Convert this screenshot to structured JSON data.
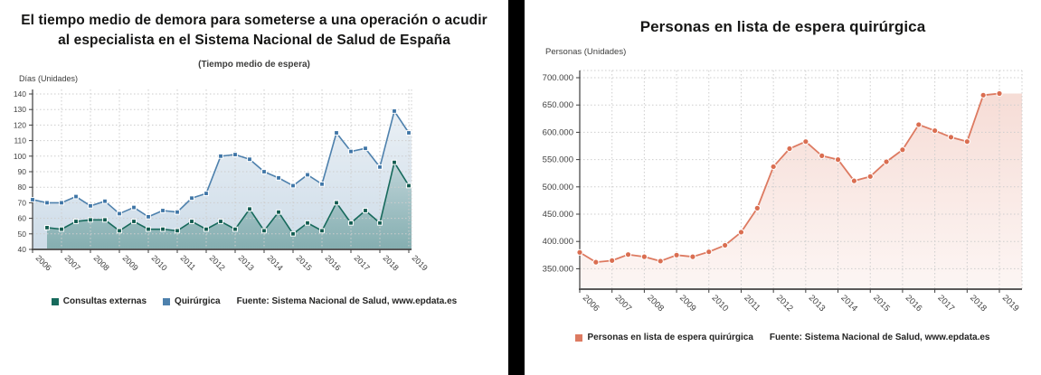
{
  "page": {
    "background": "#ffffff",
    "divider_color": "#000000"
  },
  "chart_data": [
    {
      "type": "line",
      "title": "El tiempo medio de demora para someterse a una operación o acudir al especialista en el Sistema Nacional de Salud de España",
      "subtitle": "(Tiempo medio de espera)",
      "ylabel": "Días (Unidades)",
      "xlabel": "",
      "x_years": [
        "2006",
        "2007",
        "2008",
        "2009",
        "2010",
        "2011",
        "2012",
        "2013",
        "2014",
        "2015",
        "2016",
        "2017",
        "2018",
        "2019"
      ],
      "points_per_year": 2,
      "ylim": [
        40,
        140
      ],
      "yticks": [
        40,
        50,
        60,
        70,
        80,
        90,
        100,
        110,
        120,
        130,
        140
      ],
      "ytick_dots": false,
      "grid": true,
      "legend_position": "bottom",
      "source": "Fuente: Sistema Nacional de Salud, www.epdata.es",
      "series": [
        {
          "name": "Consultas externas",
          "color": "#176a5c",
          "marker_color": "#0f5a4e",
          "marker": "square",
          "start_index": 1,
          "area_opacity": [
            0.16,
            0.4
          ],
          "values": [
            54,
            53,
            58,
            59,
            59,
            52,
            58,
            53,
            53,
            52,
            58,
            53,
            58,
            53,
            66,
            52,
            64,
            50,
            57,
            52,
            70,
            57,
            65,
            57,
            96,
            81
          ]
        },
        {
          "name": "Quirúrgica",
          "color": "#4e81ad",
          "marker_color": "#3d74a6",
          "marker": "square",
          "start_index": 0,
          "area_opacity": [
            0.12,
            0.28
          ],
          "values": [
            72,
            70,
            70,
            74,
            68,
            71,
            63,
            67,
            61,
            65,
            64,
            73,
            76,
            100,
            101,
            98,
            90,
            86,
            81,
            88,
            82,
            115,
            103,
            105,
            93,
            129,
            115
          ]
        }
      ]
    },
    {
      "type": "line",
      "title": "Personas en lista de espera quirúrgica",
      "subtitle": "",
      "ylabel": "Personas (Unidades)",
      "xlabel": "",
      "x_years": [
        "2006",
        "2007",
        "2008",
        "2009",
        "2010",
        "2011",
        "2012",
        "2013",
        "2014",
        "2015",
        "2016",
        "2017",
        "2018",
        "2019"
      ],
      "points_per_year": 2,
      "ylim": [
        312600,
        700000
      ],
      "yticks": [
        350000,
        400000,
        450000,
        500000,
        550000,
        600000,
        650000,
        700000
      ],
      "ytick_dots": true,
      "grid": true,
      "top_border": true,
      "legend_position": "bottom",
      "source": "Fuente: Sistema Nacional de Salud, www.epdata.es",
      "series": [
        {
          "name": "Personas en lista de espera quirúrgica",
          "color": "#dd7a61",
          "marker_color": "#da6e51",
          "marker": "circle",
          "start_index": 0,
          "area_opacity": [
            0.26,
            0.07
          ],
          "values": [
            380000,
            362000,
            365000,
            376000,
            372000,
            364000,
            375000,
            372000,
            381000,
            393000,
            417000,
            461000,
            537000,
            570000,
            583000,
            557000,
            550000,
            511000,
            519000,
            546000,
            568000,
            614000,
            603000,
            591000,
            583000,
            668000,
            671000
          ]
        }
      ]
    }
  ]
}
